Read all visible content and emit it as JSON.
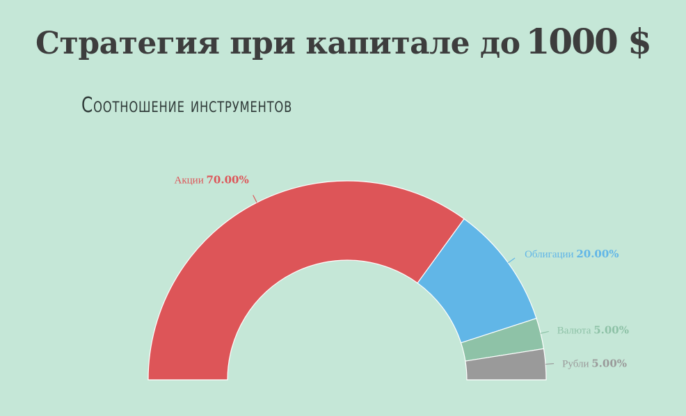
{
  "header": {
    "title": "Стратегия при капитале до",
    "amount": "1000 $",
    "subtitle": "Соотношение инструментов"
  },
  "chart_data": {
    "type": "pie",
    "variant": "half-donut",
    "slices": [
      {
        "label": "Акции",
        "value": 70.0,
        "value_label": "70.00%",
        "color": "#dd5558"
      },
      {
        "label": "Облигации",
        "value": 20.0,
        "value_label": "20.00%",
        "color": "#61b6e7"
      },
      {
        "label": "Валюта",
        "value": 5.0,
        "value_label": "5.00%",
        "color": "#8ec2a7"
      },
      {
        "label": "Рубли",
        "value": 5.0,
        "value_label": "5.00%",
        "color": "#9a9a9a"
      }
    ]
  }
}
